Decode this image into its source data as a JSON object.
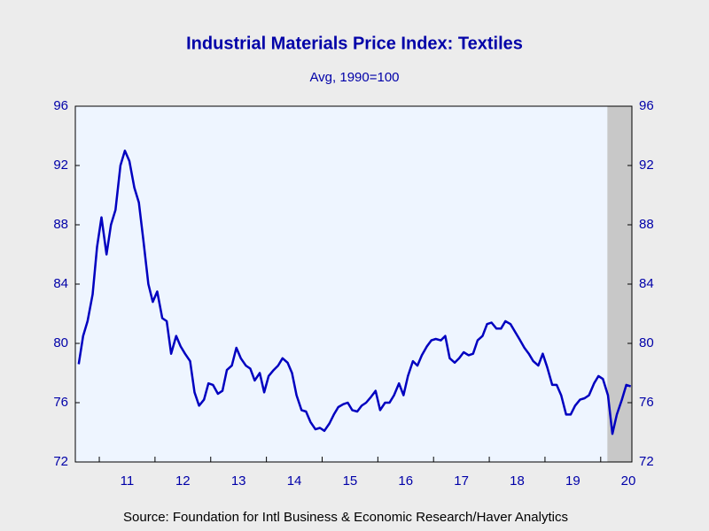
{
  "chart_data": {
    "type": "line",
    "title": "Industrial Materials Price Index: Textiles",
    "subtitle": "Avg, 1990=100",
    "source": "Source:  Foundation for Intl Business & Economic Research/Haver Analytics",
    "x": [
      2010.63,
      2010.71,
      2010.79,
      2010.88,
      2010.96,
      2011.04,
      2011.13,
      2011.21,
      2011.29,
      2011.38,
      2011.46,
      2011.54,
      2011.63,
      2011.71,
      2011.79,
      2011.88,
      2011.96,
      2012.04,
      2012.13,
      2012.21,
      2012.29,
      2012.38,
      2012.46,
      2012.54,
      2012.63,
      2012.71,
      2012.79,
      2012.88,
      2012.96,
      2013.04,
      2013.13,
      2013.21,
      2013.29,
      2013.38,
      2013.46,
      2013.54,
      2013.63,
      2013.71,
      2013.79,
      2013.88,
      2013.96,
      2014.04,
      2014.13,
      2014.21,
      2014.29,
      2014.38,
      2014.46,
      2014.54,
      2014.63,
      2014.71,
      2014.79,
      2014.88,
      2014.96,
      2015.04,
      2015.13,
      2015.21,
      2015.29,
      2015.38,
      2015.46,
      2015.54,
      2015.63,
      2015.71,
      2015.79,
      2015.88,
      2015.96,
      2016.04,
      2016.13,
      2016.21,
      2016.29,
      2016.38,
      2016.46,
      2016.54,
      2016.63,
      2016.71,
      2016.79,
      2016.88,
      2016.96,
      2017.04,
      2017.13,
      2017.21,
      2017.29,
      2017.38,
      2017.46,
      2017.54,
      2017.63,
      2017.71,
      2017.79,
      2017.88,
      2017.96,
      2018.04,
      2018.13,
      2018.21,
      2018.29,
      2018.38,
      2018.46,
      2018.54,
      2018.63,
      2018.71,
      2018.79,
      2018.88,
      2018.96,
      2019.04,
      2019.13,
      2019.21,
      2019.29,
      2019.38,
      2019.46,
      2019.54,
      2019.63,
      2019.71,
      2019.79,
      2019.88,
      2019.96,
      2020.04,
      2020.13,
      2020.21,
      2020.29,
      2020.38,
      2020.46,
      2020.54
    ],
    "series": [
      {
        "color": "#0000c0",
        "values": [
          78.6,
          80.5,
          81.5,
          83.3,
          86.5,
          88.5,
          86,
          88,
          89,
          92,
          93,
          92.3,
          90.5,
          89.5,
          87,
          84,
          82.8,
          83.5,
          81.7,
          81.5,
          79.3,
          80.5,
          79.8,
          79.3,
          78.8,
          76.7,
          75.8,
          76.2,
          77.3,
          77.2,
          76.6,
          76.8,
          78.2,
          78.5,
          79.7,
          79,
          78.5,
          78.3,
          77.5,
          78,
          76.7,
          77.8,
          78.2,
          78.5,
          79,
          78.7,
          78,
          76.5,
          75.5,
          75.4,
          74.7,
          74.2,
          74.3,
          74.1,
          74.6,
          75.2,
          75.7,
          75.9,
          76,
          75.5,
          75.4,
          75.8,
          76,
          76.4,
          76.8,
          75.5,
          76,
          76,
          76.5,
          77.3,
          76.5,
          77.8,
          78.8,
          78.5,
          79.2,
          79.8,
          80.2,
          80.3,
          80.2,
          80.5,
          79,
          78.7,
          79,
          79.4,
          79.2,
          79.3,
          80.2,
          80.5,
          81.3,
          81.4,
          81,
          81,
          81.5,
          81.3,
          80.8,
          80.3,
          79.7,
          79.3,
          78.8,
          78.5,
          79.3,
          78.4,
          77.2,
          77.2,
          76.5,
          75.2,
          75.2,
          75.8,
          76.2,
          76.3,
          76.5,
          77.3,
          77.8,
          77.6,
          76.5,
          73.9,
          75.2,
          76.2,
          77.2,
          77.1
        ]
      }
    ],
    "xlim": [
      2010.57,
      2020.56
    ],
    "xticks": [
      {
        "value": 2011,
        "label": "11"
      },
      {
        "value": 2012,
        "label": "12"
      },
      {
        "value": 2013,
        "label": "13"
      },
      {
        "value": 2014,
        "label": "14"
      },
      {
        "value": 2015,
        "label": "15"
      },
      {
        "value": 2016,
        "label": "16"
      },
      {
        "value": 2017,
        "label": "17"
      },
      {
        "value": 2018,
        "label": "18"
      },
      {
        "value": 2019,
        "label": "19"
      },
      {
        "value": 2020,
        "label": "20"
      }
    ],
    "ylim": [
      72,
      96
    ],
    "yticks": [
      72,
      76,
      80,
      84,
      88,
      92,
      96
    ],
    "shaded": [
      2020.12,
      2020.56
    ],
    "shade_color": "#c8c8c8"
  }
}
